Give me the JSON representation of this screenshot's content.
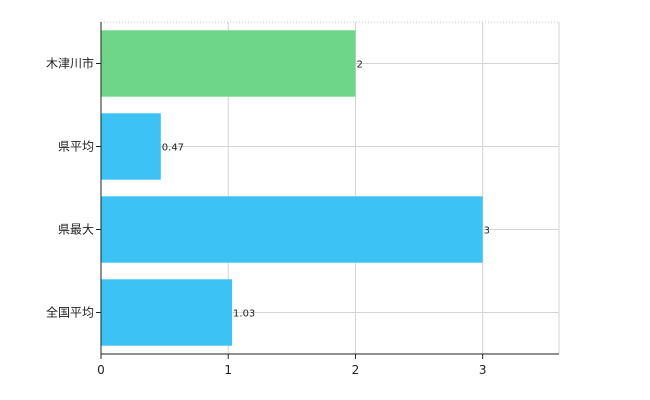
{
  "chart_data": {
    "type": "bar",
    "orientation": "horizontal",
    "categories": [
      "木津川市",
      "県平均",
      "県最大",
      "全国平均"
    ],
    "values": [
      2,
      0.47,
      3,
      1.03
    ],
    "value_labels": [
      "2",
      "0.47",
      "3",
      "1.03"
    ],
    "colors": [
      "#6dd688",
      "#3cc2f5",
      "#3cc2f5",
      "#3cc2f5"
    ],
    "xlim": [
      0,
      3.6
    ],
    "xticks": [
      0,
      1,
      2,
      3
    ],
    "xtick_labels": [
      "0",
      "1",
      "2",
      "3"
    ],
    "grid": true,
    "title": "",
    "xlabel": "",
    "ylabel": ""
  }
}
